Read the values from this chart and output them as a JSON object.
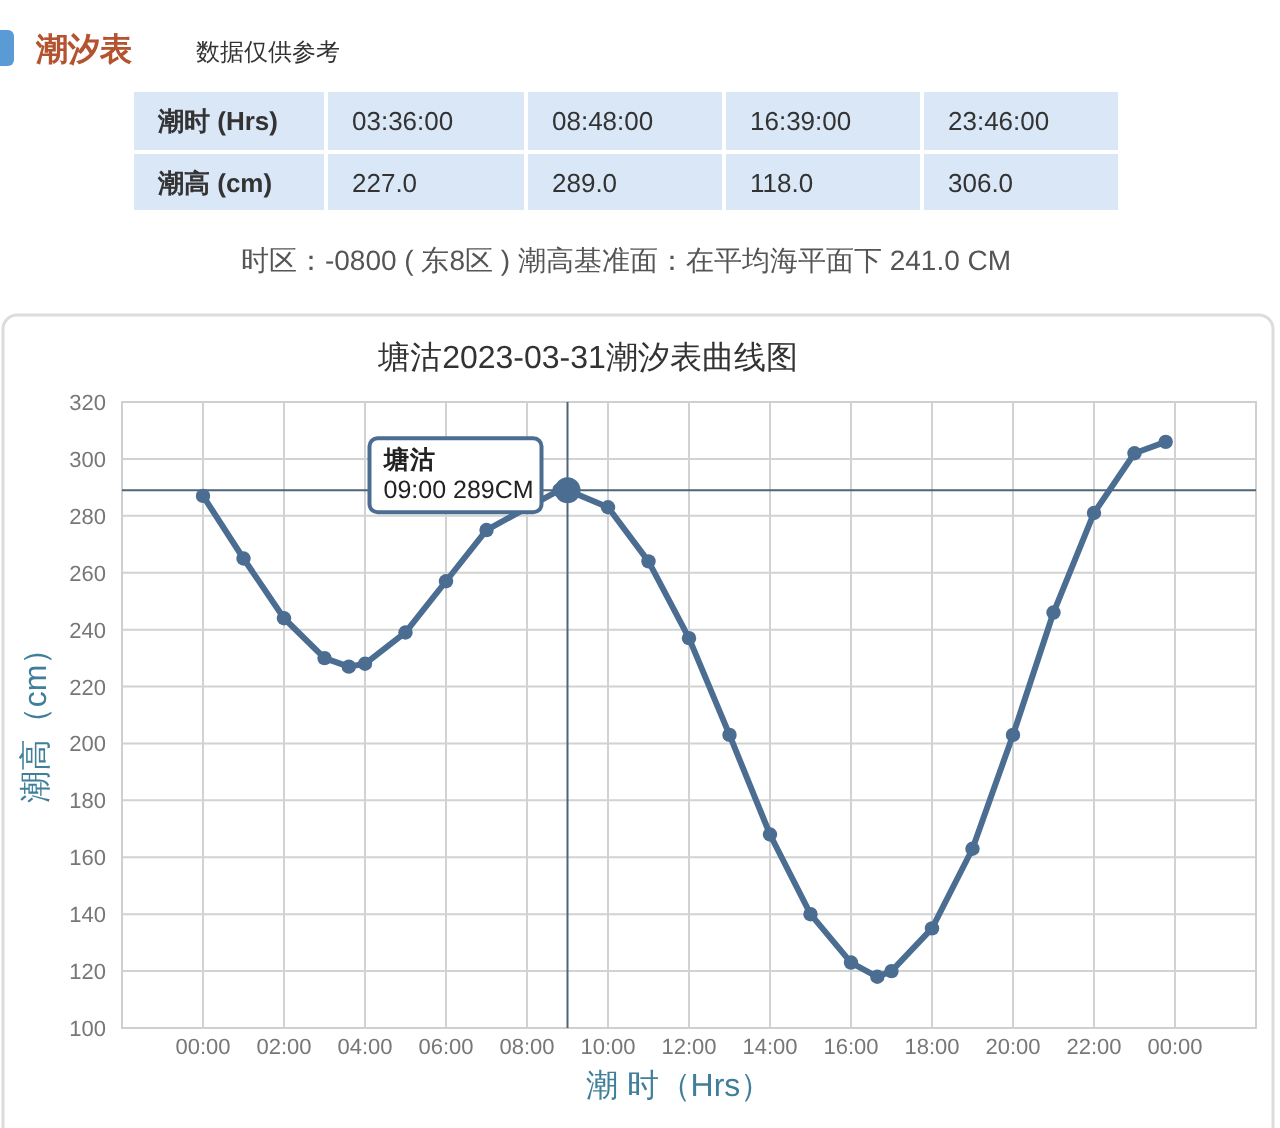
{
  "chart_data": [
    {
      "type": "other",
      "title": "潮汐表",
      "subtitle": "数据仅供参考",
      "annotations": [
        "潮时 (Hrs)",
        "03:36:00",
        "08:48:00",
        "16:39:00",
        "23:46:00",
        "潮高 (cm)",
        "227.0",
        "289.0",
        "118.0",
        "306.0",
        "时区：-0800 ( 东8区 ) 潮高基准面：在平均海平面下 241.0 CM"
      ]
    },
    {
      "type": "line",
      "title": "塘沽2023-03-31潮汐表曲线图",
      "xlabel": "潮 时（Hrs）",
      "ylabel": "潮高（cm）",
      "x": [
        0,
        1,
        2,
        3,
        3.6,
        4,
        5,
        6,
        7,
        8.8,
        9,
        10,
        11,
        12,
        13,
        14,
        15,
        16,
        16.65,
        17,
        18,
        19,
        20,
        21,
        22,
        23,
        23.77
      ],
      "series": [
        {
          "color": "#4b6d92",
          "values": [
            287,
            265,
            244,
            230,
            227,
            228,
            239,
            257,
            275,
            289,
            289,
            283,
            264,
            237,
            203,
            168,
            140,
            123,
            118,
            120,
            135,
            163,
            203,
            246,
            281,
            302,
            306
          ]
        }
      ],
      "xlim": [
        -2,
        26
      ],
      "xticks": [
        {
          "value": 0,
          "label": "00:00"
        },
        {
          "value": 2,
          "label": "02:00"
        },
        {
          "value": 4,
          "label": "04:00"
        },
        {
          "value": 6,
          "label": "06:00"
        },
        {
          "value": 8,
          "label": "08:00"
        },
        {
          "value": 10,
          "label": "10:00"
        },
        {
          "value": 12,
          "label": "12:00"
        },
        {
          "value": 14,
          "label": "14:00"
        },
        {
          "value": 16,
          "label": "16:00"
        },
        {
          "value": 18,
          "label": "18:00"
        },
        {
          "value": 20,
          "label": "20:00"
        },
        {
          "value": 22,
          "label": "22:00"
        },
        {
          "value": 24,
          "label": "00:00"
        }
      ],
      "ylim": [
        100,
        320
      ],
      "yticks": [
        100,
        120,
        140,
        160,
        180,
        200,
        220,
        240,
        260,
        280,
        300,
        320
      ],
      "grid": true,
      "marker": "circle",
      "line_style": "solid",
      "ref_lines": [
        {
          "axis": "x",
          "value": 9,
          "color": "#4f6475"
        },
        {
          "axis": "y",
          "value": 289,
          "color": "#4f6475"
        }
      ],
      "annotations": [
        {
          "text": "塘沽\n09:00 289CM",
          "x": 9,
          "y": 289
        }
      ]
    }
  ]
}
